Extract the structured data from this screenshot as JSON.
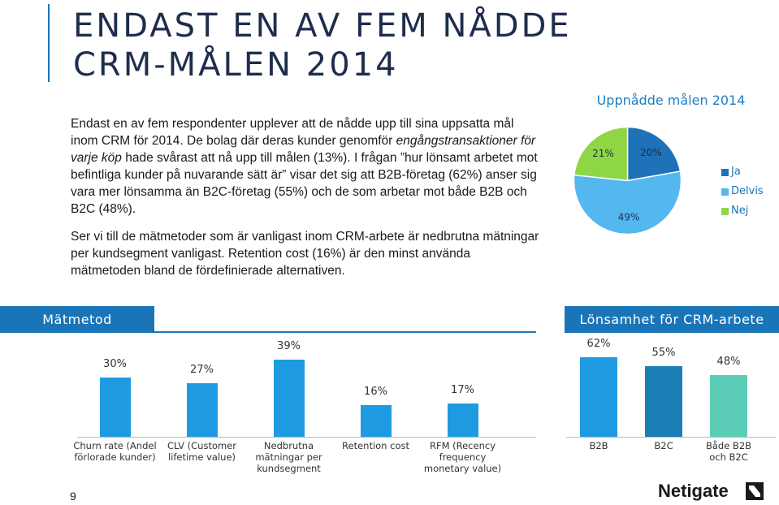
{
  "title_lines": [
    "ENDAST EN AV FEM NÅDDE",
    "CRM-MÅLEN 2014"
  ],
  "paragraphs": [
    [
      "Endast en av fem respondenter upplever att de nådde upp till sina uppsatta mål inom CRM för 2014. De bolag där deras kunder genomför ",
      "engångstransaktioner för varje köp",
      " hade svårast att nå upp till målen (13%). I frågan ”hur lönsamt arbetet mot befintliga kunder på nuvarande sätt är” visar det sig att B2B-företag (62%) anser sig vara mer lönsamma än B2C-företag (55%) och de som arbetar mot både B2B och B2C (48%)."
    ],
    "Ser vi till de mätmetoder som är vanligast inom CRM-arbete är nedbrutna mätningar per kundsegment vanligast. Retention cost (16%) är den minst använda mätmetoden bland de fördefinierade alternativen."
  ],
  "page_number": "9",
  "logo": "Netigate",
  "chart_data": [
    {
      "type": "pie",
      "title": "Uppnådde målen 2014",
      "categories": [
        "Ja",
        "Delvis",
        "Nej"
      ],
      "values": [
        20,
        49,
        21
      ],
      "value_labels": [
        "20%",
        "49%",
        "21%"
      ],
      "colors": [
        "#1e72b8",
        "#55b7f0",
        "#8fd646"
      ]
    },
    {
      "type": "bar",
      "title": "Mätmetod",
      "categories": [
        "Churn rate (Andel förlorade kunder)",
        "CLV (Customer lifetime value)",
        "Nedbrutna mätningar per kundsegment",
        "Retention cost",
        "RFM (Recency frequency monetary value)"
      ],
      "values": [
        30,
        27,
        39,
        16,
        17
      ],
      "value_labels": [
        "30%",
        "27%",
        "39%",
        "16%",
        "17%"
      ],
      "color": "#1e9be0"
    },
    {
      "type": "bar",
      "title": "Lönsamhet för CRM-arbete",
      "categories": [
        "B2B",
        "B2C",
        "Både B2B och B2C"
      ],
      "values": [
        62,
        55,
        48
      ],
      "value_labels": [
        "62%",
        "55%",
        "48%"
      ],
      "colors": [
        "#1e9be0",
        "#1b7fb5",
        "#5ccdb6"
      ]
    }
  ]
}
